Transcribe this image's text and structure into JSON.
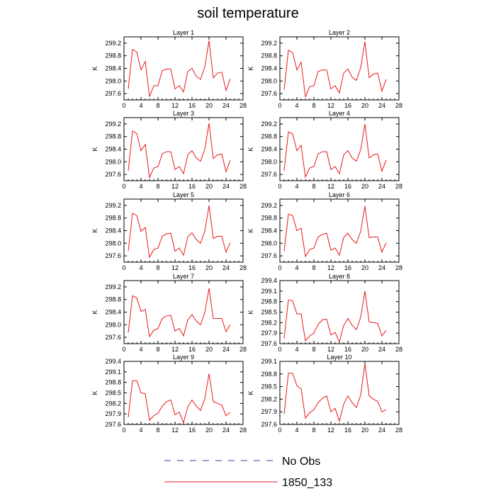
{
  "title": "soil temperature",
  "legend": [
    {
      "label": "No Obs",
      "color": "#3a3ab4",
      "dash": true
    },
    {
      "label": "1850_133",
      "color": "#e8191c",
      "dash": false
    }
  ],
  "chart_data": {
    "type": "line",
    "title": "soil temperature",
    "xlim": [
      0,
      28
    ],
    "xticks": [
      0,
      4,
      8,
      12,
      16,
      20,
      24,
      28
    ],
    "ylabel": "K",
    "grid": false,
    "legend_position": "bottom",
    "x": [
      1,
      2,
      3,
      4,
      5,
      6,
      7,
      8,
      9,
      10,
      11,
      12,
      13,
      14,
      15,
      16,
      17,
      18,
      19,
      20,
      21,
      22,
      23,
      24,
      25
    ],
    "panels": [
      {
        "title": "Layer 1",
        "ylim": [
          297.4,
          299.4
        ],
        "yticks": [
          "297.6",
          "298.0",
          "298.4",
          "298.8",
          "299.2"
        ],
        "series": [
          {
            "name": "1850_133",
            "values": [
              297.75,
              299.0,
              298.92,
              298.35,
              298.62,
              297.5,
              297.85,
              297.85,
              298.33,
              298.38,
              298.38,
              297.75,
              297.85,
              297.65,
              298.3,
              298.4,
              298.15,
              298.05,
              298.45,
              299.28,
              298.1,
              298.25,
              298.28,
              297.7,
              298.07
            ]
          }
        ]
      },
      {
        "title": "Layer 2",
        "ylim": [
          297.4,
          299.4
        ],
        "yticks": [
          "297.6",
          "298.0",
          "298.4",
          "298.8",
          "299.2"
        ],
        "series": [
          {
            "name": "1850_133",
            "values": [
              297.72,
              298.98,
              298.9,
              298.35,
              298.6,
              297.5,
              297.82,
              297.85,
              298.3,
              298.35,
              298.35,
              297.75,
              297.85,
              297.62,
              298.25,
              298.38,
              298.12,
              298.02,
              298.42,
              299.25,
              298.1,
              298.22,
              298.25,
              297.68,
              298.05
            ]
          }
        ]
      },
      {
        "title": "Layer 3",
        "ylim": [
          297.4,
          299.4
        ],
        "yticks": [
          "297.6",
          "298.0",
          "298.4",
          "298.8",
          "299.2"
        ],
        "series": [
          {
            "name": "1850_133",
            "values": [
              297.72,
              298.97,
              298.9,
              298.35,
              298.55,
              297.5,
              297.8,
              297.85,
              298.25,
              298.32,
              298.32,
              297.75,
              297.85,
              297.62,
              298.22,
              298.35,
              298.12,
              298.02,
              298.4,
              299.22,
              298.1,
              298.22,
              298.25,
              297.68,
              298.05
            ]
          }
        ]
      },
      {
        "title": "Layer 4",
        "ylim": [
          297.4,
          299.4
        ],
        "yticks": [
          "297.6",
          "298.0",
          "298.4",
          "298.8",
          "299.2"
        ],
        "series": [
          {
            "name": "1850_133",
            "values": [
              297.72,
              298.95,
              298.88,
              298.35,
              298.52,
              297.52,
              297.8,
              297.85,
              298.25,
              298.32,
              298.32,
              297.75,
              297.85,
              297.62,
              298.22,
              298.35,
              298.12,
              298.02,
              298.38,
              299.2,
              298.12,
              298.22,
              298.25,
              297.7,
              298.05
            ]
          }
        ]
      },
      {
        "title": "Layer 5",
        "ylim": [
          297.4,
          299.4
        ],
        "yticks": [
          "297.6",
          "298.0",
          "298.4",
          "298.8",
          "299.2"
        ],
        "series": [
          {
            "name": "1850_133",
            "values": [
              297.75,
              298.95,
              298.88,
              298.38,
              298.5,
              297.55,
              297.8,
              297.85,
              298.22,
              298.3,
              298.32,
              297.75,
              297.85,
              297.62,
              298.2,
              298.33,
              298.12,
              298.0,
              298.38,
              299.2,
              298.15,
              298.22,
              298.22,
              297.72,
              298.02
            ]
          }
        ]
      },
      {
        "title": "Layer 6",
        "ylim": [
          297.4,
          299.4
        ],
        "yticks": [
          "297.6",
          "298.0",
          "298.4",
          "298.8",
          "299.2"
        ],
        "series": [
          {
            "name": "1850_133",
            "values": [
              297.75,
              298.92,
              298.88,
              298.4,
              298.48,
              297.58,
              297.8,
              297.85,
              298.2,
              298.28,
              298.32,
              297.78,
              297.85,
              297.62,
              298.18,
              298.32,
              298.12,
              298.0,
              298.38,
              299.18,
              298.18,
              298.2,
              298.2,
              297.72,
              298.02
            ]
          }
        ]
      },
      {
        "title": "Layer 7",
        "ylim": [
          297.4,
          299.4
        ],
        "yticks": [
          "297.6",
          "298.0",
          "298.4",
          "298.8",
          "299.2"
        ],
        "series": [
          {
            "name": "1850_133",
            "values": [
              297.75,
              298.92,
              298.85,
              298.42,
              298.48,
              297.62,
              297.82,
              297.88,
              298.2,
              298.28,
              298.3,
              297.8,
              297.88,
              297.65,
              298.15,
              298.32,
              298.12,
              298.0,
              298.38,
              299.15,
              298.2,
              298.2,
              298.2,
              297.78,
              298.0
            ]
          }
        ]
      },
      {
        "title": "Layer 8",
        "ylim": [
          297.6,
          299.4
        ],
        "yticks": [
          "297.6",
          "297.9",
          "298.2",
          "298.5",
          "298.8",
          "299.1",
          "299.4"
        ],
        "series": [
          {
            "name": "1850_133",
            "values": [
              297.75,
              298.85,
              298.82,
              298.45,
              298.45,
              297.68,
              297.82,
              297.9,
              298.15,
              298.28,
              298.3,
              297.85,
              297.92,
              297.65,
              298.12,
              298.32,
              298.12,
              298.0,
              298.35,
              299.1,
              298.22,
              298.2,
              298.18,
              297.82,
              297.98
            ]
          }
        ]
      },
      {
        "title": "Layer 9",
        "ylim": [
          297.6,
          299.4
        ],
        "yticks": [
          "297.6",
          "297.9",
          "298.2",
          "298.5",
          "298.8",
          "299.1",
          "299.4"
        ],
        "series": [
          {
            "name": "1850_133",
            "values": [
              297.8,
              298.85,
              298.85,
              298.5,
              298.48,
              297.72,
              297.85,
              297.92,
              298.12,
              298.25,
              298.3,
              297.88,
              297.95,
              297.65,
              298.1,
              298.3,
              298.12,
              298.0,
              298.33,
              299.05,
              298.25,
              298.2,
              298.15,
              297.85,
              297.95
            ]
          }
        ]
      },
      {
        "title": "Layer 10",
        "ylim": [
          297.6,
          299.1
        ],
        "yticks": [
          "297.6",
          "297.9",
          "298.2",
          "298.5",
          "298.8",
          "299.1"
        ],
        "series": [
          {
            "name": "1850_133",
            "values": [
              297.85,
              298.82,
              298.82,
              298.52,
              298.45,
              297.75,
              297.88,
              297.95,
              298.12,
              298.22,
              298.28,
              297.9,
              297.98,
              297.68,
              298.08,
              298.28,
              298.12,
              298.0,
              298.3,
              299.05,
              298.28,
              298.2,
              298.15,
              297.9,
              297.95
            ]
          }
        ]
      }
    ]
  }
}
